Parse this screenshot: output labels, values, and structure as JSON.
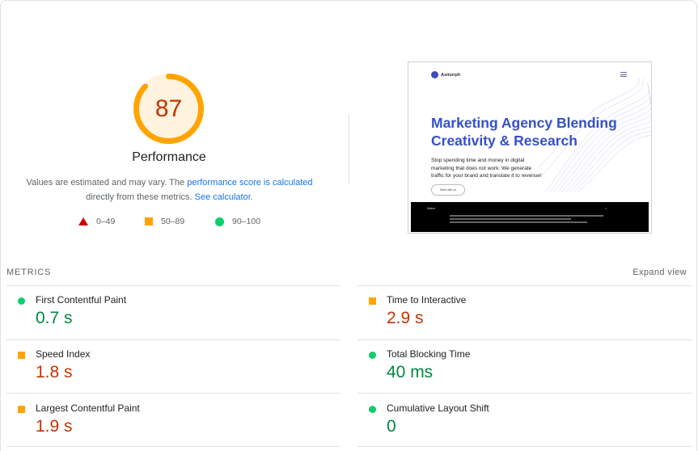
{
  "score": {
    "value": "87",
    "fraction": 0.87,
    "title": "Performance",
    "ring_color": "#ffa400",
    "track_color": "#fff3e0"
  },
  "description": {
    "text1": "Values are estimated and may vary. The ",
    "link1": "performance score is calculated",
    "text2": "directly from these metrics. ",
    "link2": "See calculator",
    "text3": "."
  },
  "legend": {
    "poor": "0–49",
    "average": "50–89",
    "good": "90–100"
  },
  "screenshot": {
    "logo": "Asmorph",
    "heading": "Marketing Agency Blending Creativity & Research",
    "subtext": "Stop spending time and money in digital marketing that does not work. We generate traffic for your brand and translate it to revenue!",
    "button": "Work with us",
    "cookie_title": "Notice",
    "cookie_close": "×"
  },
  "metrics": {
    "label": "METRICS",
    "expand": "Expand view",
    "items": [
      {
        "title": "First Contentful Paint",
        "value": "0.7 s",
        "status": "good"
      },
      {
        "title": "Time to Interactive",
        "value": "2.9 s",
        "status": "average"
      },
      {
        "title": "Speed Index",
        "value": "1.8 s",
        "status": "average"
      },
      {
        "title": "Total Blocking Time",
        "value": "40 ms",
        "status": "good"
      },
      {
        "title": "Largest Contentful Paint",
        "value": "1.9 s",
        "status": "average"
      },
      {
        "title": "Cumulative Layout Shift",
        "value": "0",
        "status": "good"
      }
    ]
  },
  "colors": {
    "good": "#0cce6b",
    "average": "#ffa400",
    "poor": "#cc0000",
    "link": "#1a73e8"
  }
}
